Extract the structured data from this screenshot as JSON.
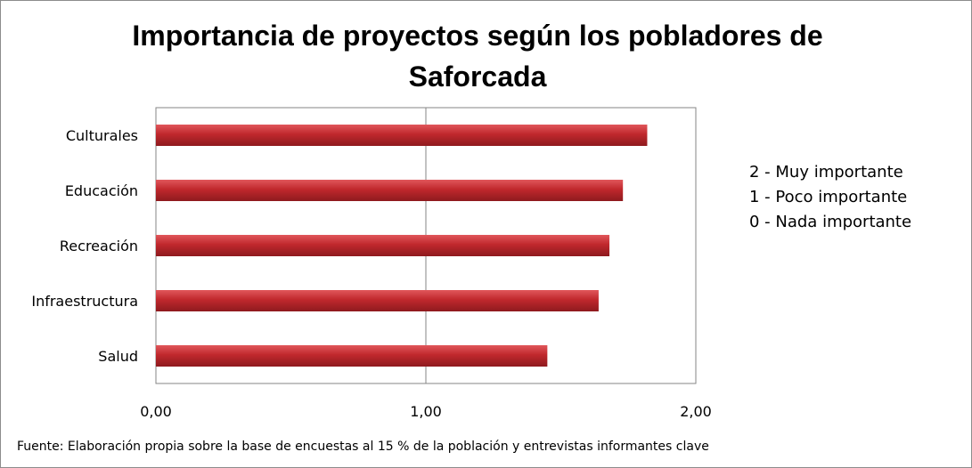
{
  "chart_data": {
    "type": "bar",
    "orientation": "horizontal",
    "title": "Importancia de proyectos según los pobladores de Saforcada",
    "categories": [
      "Culturales",
      "Educación",
      "Recreación",
      "Infraestructura",
      "Salud"
    ],
    "values": [
      1.82,
      1.73,
      1.68,
      1.64,
      1.45
    ],
    "xlim": [
      0,
      2
    ],
    "x_ticks": [
      "0,00",
      "1,00",
      "2,00"
    ],
    "grid": true,
    "bar_color": "#c0282d",
    "legend_note": [
      "2 - Muy importante",
      "1 - Poco importante",
      "0 - Nada importante"
    ],
    "source": "Fuente: Elaboración propia sobre la base de encuestas al 15 %  de la población y entrevistas informantes clave"
  }
}
